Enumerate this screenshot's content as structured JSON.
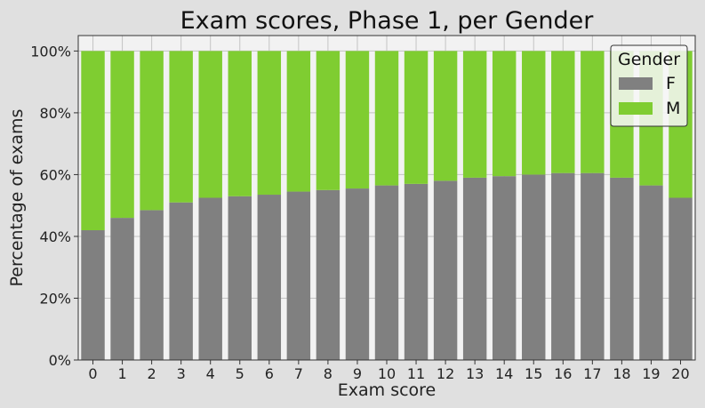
{
  "chart_data": {
    "type": "bar",
    "stacked": true,
    "title": "Exam scores, Phase 1, per Gender",
    "xlabel": "Exam score",
    "ylabel": "Percentage of exams",
    "categories": [
      "0",
      "1",
      "2",
      "3",
      "4",
      "5",
      "6",
      "7",
      "8",
      "9",
      "10",
      "11",
      "12",
      "13",
      "14",
      "15",
      "16",
      "17",
      "18",
      "19",
      "20"
    ],
    "series": [
      {
        "name": "F",
        "color": "#808080",
        "values": [
          42.0,
          46.0,
          48.5,
          51.0,
          52.5,
          53.0,
          53.5,
          54.5,
          55.0,
          55.5,
          56.5,
          57.0,
          58.0,
          59.0,
          59.5,
          60.0,
          60.5,
          60.5,
          59.0,
          56.5,
          52.5
        ]
      },
      {
        "name": "M",
        "color": "#7fcd31",
        "values": [
          58.0,
          54.0,
          51.5,
          49.0,
          47.5,
          47.0,
          46.5,
          45.5,
          45.0,
          44.5,
          43.5,
          43.0,
          42.0,
          41.0,
          40.5,
          40.0,
          39.5,
          39.5,
          41.0,
          43.5,
          47.5
        ]
      }
    ],
    "ylim": [
      0,
      105
    ],
    "yticks": [
      0,
      20,
      40,
      60,
      80,
      100
    ],
    "ytick_labels": [
      "0%",
      "20%",
      "40%",
      "60%",
      "80%",
      "100%"
    ],
    "grid": true,
    "legend": {
      "title": "Gender",
      "placement": "top-right"
    }
  }
}
